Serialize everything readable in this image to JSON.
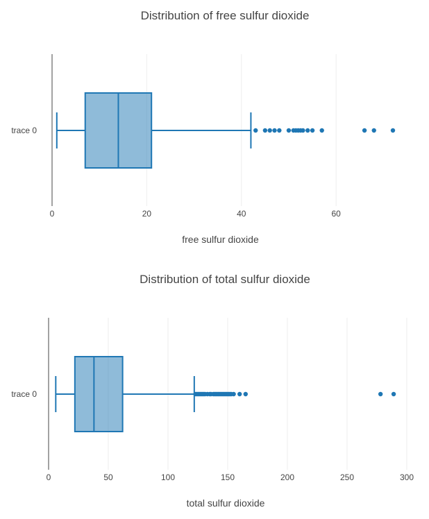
{
  "chart_data": [
    {
      "type": "box",
      "title": "Distribution of free sulfur dioxide",
      "xlabel": "free sulfur dioxide",
      "xlim": [
        0,
        72
      ],
      "xticks": [
        0,
        20,
        40,
        60
      ],
      "series": [
        {
          "name": "trace 0",
          "min": 1,
          "q1": 7,
          "median": 14,
          "q3": 21,
          "max": 42,
          "outliers": [
            43,
            45,
            46,
            47,
            48,
            50,
            51,
            51.5,
            52,
            52.5,
            53,
            54,
            55,
            57,
            66,
            68,
            72
          ]
        }
      ],
      "grid": true,
      "color": "#1f77b4"
    },
    {
      "type": "box",
      "title": "Distribution of total sulfur dioxide",
      "xlabel": "total sulfur dioxide",
      "xlim": [
        0,
        300
      ],
      "xticks": [
        0,
        50,
        100,
        150,
        200,
        250,
        300
      ],
      "series": [
        {
          "name": "trace 0",
          "min": 6,
          "q1": 22,
          "median": 38,
          "q3": 62,
          "max": 122,
          "outliers": [
            123,
            124,
            125,
            126,
            127,
            128,
            129,
            130,
            131,
            133,
            135,
            136,
            138,
            139,
            140,
            141,
            142,
            143,
            144,
            145,
            146,
            147,
            148,
            149,
            150,
            151,
            152,
            153,
            155,
            160,
            165,
            278,
            289
          ]
        }
      ],
      "grid": true,
      "color": "#1f77b4"
    }
  ]
}
